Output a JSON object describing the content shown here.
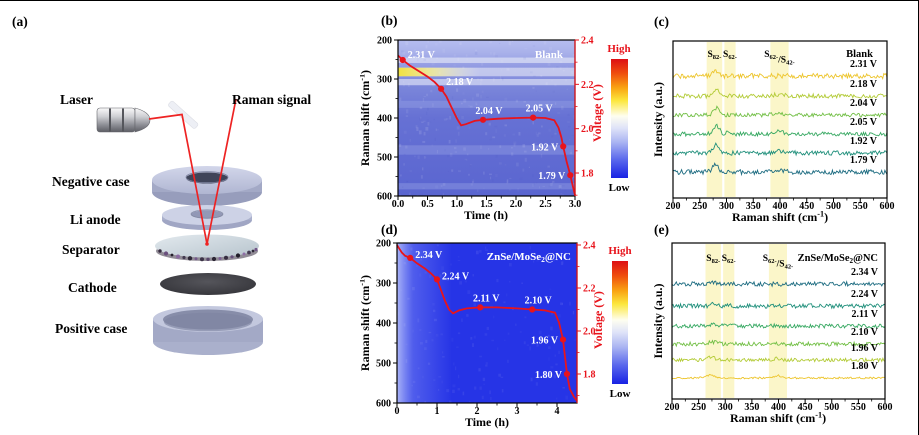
{
  "figure": {
    "panel_tags": {
      "a": "(a)",
      "b": "(b)",
      "c": "(c)",
      "d": "(d)",
      "e": "(e)"
    },
    "colors": {
      "voltage_curve": "#e8141c",
      "highlight_band": "#faf5c0",
      "heat_blank_base": "#5a65d0",
      "heat_znse_base": "#2634e6",
      "colorbar_high_label": "#e8141c",
      "colorbar_low_label": "#000000"
    }
  },
  "schematic": {
    "labels": {
      "laser": "Laser",
      "raman_signal": "Raman signal",
      "negative_case": "Negative case",
      "li_anode": "Li anode",
      "separator": "Separator",
      "cathode": "Cathode",
      "positive_case": "Positive case"
    }
  },
  "chart_data": [
    {
      "id": "b",
      "type": "heatmap+line",
      "title": "Blank",
      "xlabel": "Time (h)",
      "xlim": [
        0,
        3.0
      ],
      "x_ticks": [
        "0.0",
        "0.5",
        "1.0",
        "1.5",
        "2.0",
        "2.5",
        "3.0"
      ],
      "ylabel": "Raman shift (cm^{-1})",
      "ylim": [
        200,
        600
      ],
      "y_inverted": true,
      "y_ticks": [
        "200",
        "300",
        "400",
        "500",
        "600"
      ],
      "y2label": "Voltage (V)",
      "y2_ticks": [
        "2.4",
        "2.2",
        "2.0",
        "1.8"
      ],
      "colorbar": {
        "high": "High",
        "low": "Low"
      },
      "raman_bands": [
        {
          "center": 252,
          "width": 14,
          "tone": "white"
        },
        {
          "center": 282,
          "width": 22,
          "tone": "yellow-left"
        },
        {
          "center": 308,
          "width": 16,
          "tone": "white"
        },
        {
          "center": 365,
          "width": 18,
          "tone": "faint"
        },
        {
          "center": 482,
          "width": 24,
          "tone": "faint"
        },
        {
          "center": 575,
          "width": 16,
          "tone": "faint"
        }
      ],
      "voltage_profile": [
        [
          0,
          2.33
        ],
        [
          0.08,
          2.31
        ],
        [
          0.2,
          2.285
        ],
        [
          0.35,
          2.26
        ],
        [
          0.5,
          2.235
        ],
        [
          0.62,
          2.21
        ],
        [
          0.73,
          2.18
        ],
        [
          0.82,
          2.145
        ],
        [
          0.9,
          2.1
        ],
        [
          1.0,
          2.045
        ],
        [
          1.07,
          2.015
        ],
        [
          1.15,
          2.02
        ],
        [
          1.3,
          2.035
        ],
        [
          1.44,
          2.04
        ],
        [
          1.7,
          2.045
        ],
        [
          2.0,
          2.048
        ],
        [
          2.29,
          2.05
        ],
        [
          2.5,
          2.048
        ],
        [
          2.65,
          2.038
        ],
        [
          2.72,
          2.005
        ],
        [
          2.77,
          1.96
        ],
        [
          2.8,
          1.92
        ],
        [
          2.86,
          1.85
        ],
        [
          2.92,
          1.79
        ],
        [
          2.96,
          1.745
        ],
        [
          3.0,
          1.7
        ]
      ],
      "voltage_markers": [
        {
          "t": 0.08,
          "v": 2.31,
          "label": "2.31 V",
          "side": "right",
          "dy": -4
        },
        {
          "t": 0.73,
          "v": 2.18,
          "label": "2.18 V",
          "side": "right",
          "dy": -6
        },
        {
          "t": 1.44,
          "v": 2.04,
          "label": "2.04 V",
          "side": "above",
          "dy": 0
        },
        {
          "t": 2.29,
          "v": 2.05,
          "label": "2.05 V",
          "side": "above",
          "dy": 0
        },
        {
          "t": 2.8,
          "v": 1.92,
          "label": "1.92 V",
          "side": "left",
          "dy": 0
        },
        {
          "t": 2.92,
          "v": 1.79,
          "label": "1.79 V",
          "side": "left",
          "dy": 0
        }
      ]
    },
    {
      "id": "c",
      "type": "stacked-spectra",
      "title": "Blank",
      "xlabel": "Raman shift (cm^{-1})",
      "xlim": [
        200,
        600
      ],
      "x_ticks": [
        "200",
        "250",
        "300",
        "350",
        "400",
        "450",
        "500",
        "550",
        "600"
      ],
      "ylabel": "Intensity (a.u.)",
      "highlight_bands": [
        {
          "label": "S_{8}^{2-}",
          "range": [
            263,
            292
          ]
        },
        {
          "label": "S_{6}^{2-}",
          "range": [
            296,
            317
          ]
        },
        {
          "label": "S_{6}^{2-}/S_{4}^{2-}",
          "range": [
            382,
            416
          ]
        }
      ],
      "series": [
        {
          "label": "2.31 V",
          "color": "#edc52d",
          "noise": 2.6,
          "peaks": [
            {
              "c": 281,
              "a": 4.0,
              "w": 9
            }
          ]
        },
        {
          "label": "2.18 V",
          "color": "#b3cb37",
          "noise": 2.1,
          "peaks": [
            {
              "c": 281,
              "a": 6.0,
              "w": 8
            },
            {
              "c": 398,
              "a": 1.5,
              "w": 12
            }
          ]
        },
        {
          "label": "2.04 V",
          "color": "#72bf45",
          "noise": 2.0,
          "peaks": [
            {
              "c": 281,
              "a": 7.0,
              "w": 8
            },
            {
              "c": 398,
              "a": 2.0,
              "w": 12
            }
          ]
        },
        {
          "label": "2.05 V",
          "color": "#38a963",
          "noise": 2.0,
          "peaks": [
            {
              "c": 281,
              "a": 8.0,
              "w": 8
            },
            {
              "c": 305,
              "a": 2.0,
              "w": 6
            },
            {
              "c": 398,
              "a": 2.5,
              "w": 10
            }
          ]
        },
        {
          "label": "1.92 V",
          "color": "#1f8f7b",
          "noise": 2.2,
          "peaks": [
            {
              "c": 281,
              "a": 9.0,
              "w": 8
            },
            {
              "c": 398,
              "a": 2.0,
              "w": 10
            }
          ]
        },
        {
          "label": "1.79 V",
          "color": "#1d6c81",
          "noise": 2.4,
          "peaks": [
            {
              "c": 279,
              "a": 9.0,
              "w": 7
            },
            {
              "c": 398,
              "a": 2.0,
              "w": 10
            }
          ]
        }
      ]
    },
    {
      "id": "d",
      "type": "heatmap+line",
      "title": "ZnSe/MoSe_{2}@NC",
      "xlabel": "Time (h)",
      "xlim": [
        0,
        4.5
      ],
      "x_ticks": [
        "0",
        "1",
        "2",
        "3",
        "4"
      ],
      "ylabel": "Raman shift (cm^{-1})",
      "ylim": [
        200,
        600
      ],
      "y_inverted": true,
      "y_ticks": [
        "200",
        "300",
        "400",
        "500",
        "600"
      ],
      "y2label": "Voltage (V)",
      "y2_ticks": [
        "2.4",
        "2.2",
        "2.0",
        "1.8"
      ],
      "colorbar": {
        "high": "High",
        "low": "Low"
      },
      "raman_bands": [],
      "voltage_profile": [
        [
          0,
          2.4
        ],
        [
          0.05,
          2.385
        ],
        [
          0.12,
          2.365
        ],
        [
          0.2,
          2.35
        ],
        [
          0.33,
          2.34
        ],
        [
          0.5,
          2.315
        ],
        [
          0.7,
          2.29
        ],
        [
          0.85,
          2.268
        ],
        [
          1.0,
          2.24
        ],
        [
          1.1,
          2.19
        ],
        [
          1.2,
          2.14
        ],
        [
          1.3,
          2.1
        ],
        [
          1.4,
          2.082
        ],
        [
          1.55,
          2.096
        ],
        [
          1.75,
          2.105
        ],
        [
          2.08,
          2.11
        ],
        [
          2.5,
          2.11
        ],
        [
          3.0,
          2.105
        ],
        [
          3.38,
          2.1
        ],
        [
          3.7,
          2.096
        ],
        [
          3.95,
          2.085
        ],
        [
          4.05,
          2.04
        ],
        [
          4.1,
          2.0
        ],
        [
          4.15,
          1.96
        ],
        [
          4.2,
          1.88
        ],
        [
          4.25,
          1.8
        ],
        [
          4.32,
          1.73
        ],
        [
          4.42,
          1.695
        ],
        [
          4.5,
          1.675
        ]
      ],
      "voltage_markers": [
        {
          "t": 0.33,
          "v": 2.34,
          "label": "2.34 V",
          "side": "right",
          "dy": -2
        },
        {
          "t": 1.0,
          "v": 2.24,
          "label": "2.24 V",
          "side": "right",
          "dy": -2
        },
        {
          "t": 2.08,
          "v": 2.11,
          "label": "2.11 V",
          "side": "above",
          "dy": 0
        },
        {
          "t": 3.38,
          "v": 2.1,
          "label": "2.10 V",
          "side": "above",
          "dy": 0
        },
        {
          "t": 4.15,
          "v": 1.96,
          "label": "1.96 V",
          "side": "left",
          "dy": 0
        },
        {
          "t": 4.25,
          "v": 1.8,
          "label": "1.80 V",
          "side": "left",
          "dy": 0
        }
      ]
    },
    {
      "id": "e",
      "type": "stacked-spectra",
      "title": "ZnSe/MoSe_{2}@NC",
      "xlabel": "Raman shift (cm^{-1})",
      "xlim": [
        200,
        600
      ],
      "x_ticks": [
        "200",
        "250",
        "300",
        "350",
        "400",
        "450",
        "500",
        "550",
        "600"
      ],
      "ylabel": "Intensity (a.u.)",
      "highlight_bands": [
        {
          "label": "S_{8}^{2-}",
          "range": [
            263,
            292
          ]
        },
        {
          "label": "S_{6}^{2-}",
          "range": [
            296,
            317
          ]
        },
        {
          "label": "S_{6}^{2-}/S_{4}^{2-}",
          "range": [
            382,
            416
          ]
        }
      ],
      "series": [
        {
          "label": "2.34 V",
          "color": "#1d6c81",
          "noise": 2.2,
          "peaks": [
            {
              "c": 275,
              "a": 1.5,
              "w": 10
            }
          ]
        },
        {
          "label": "2.24 V",
          "color": "#1f8f7b",
          "noise": 2.2,
          "peaks": [
            {
              "c": 278,
              "a": 1.5,
              "w": 9
            }
          ]
        },
        {
          "label": "2.11 V",
          "color": "#38a963",
          "noise": 2.0,
          "peaks": [
            {
              "c": 280,
              "a": 1.8,
              "w": 9
            }
          ]
        },
        {
          "label": "2.10 V",
          "color": "#72bf45",
          "noise": 2.0,
          "peaks": [
            {
              "c": 278,
              "a": 2.2,
              "w": 10
            }
          ]
        },
        {
          "label": "1.96 V",
          "color": "#b3cb37",
          "noise": 1.7,
          "peaks": [
            {
              "c": 274,
              "a": 2.5,
              "w": 11
            },
            {
              "c": 398,
              "a": 1.5,
              "w": 9
            }
          ]
        },
        {
          "label": "1.80 V",
          "color": "#edc52d",
          "noise": 0.9,
          "peaks": [
            {
              "c": 272,
              "a": 3.0,
              "w": 12
            },
            {
              "c": 398,
              "a": 2.5,
              "w": 8
            }
          ]
        }
      ]
    }
  ]
}
